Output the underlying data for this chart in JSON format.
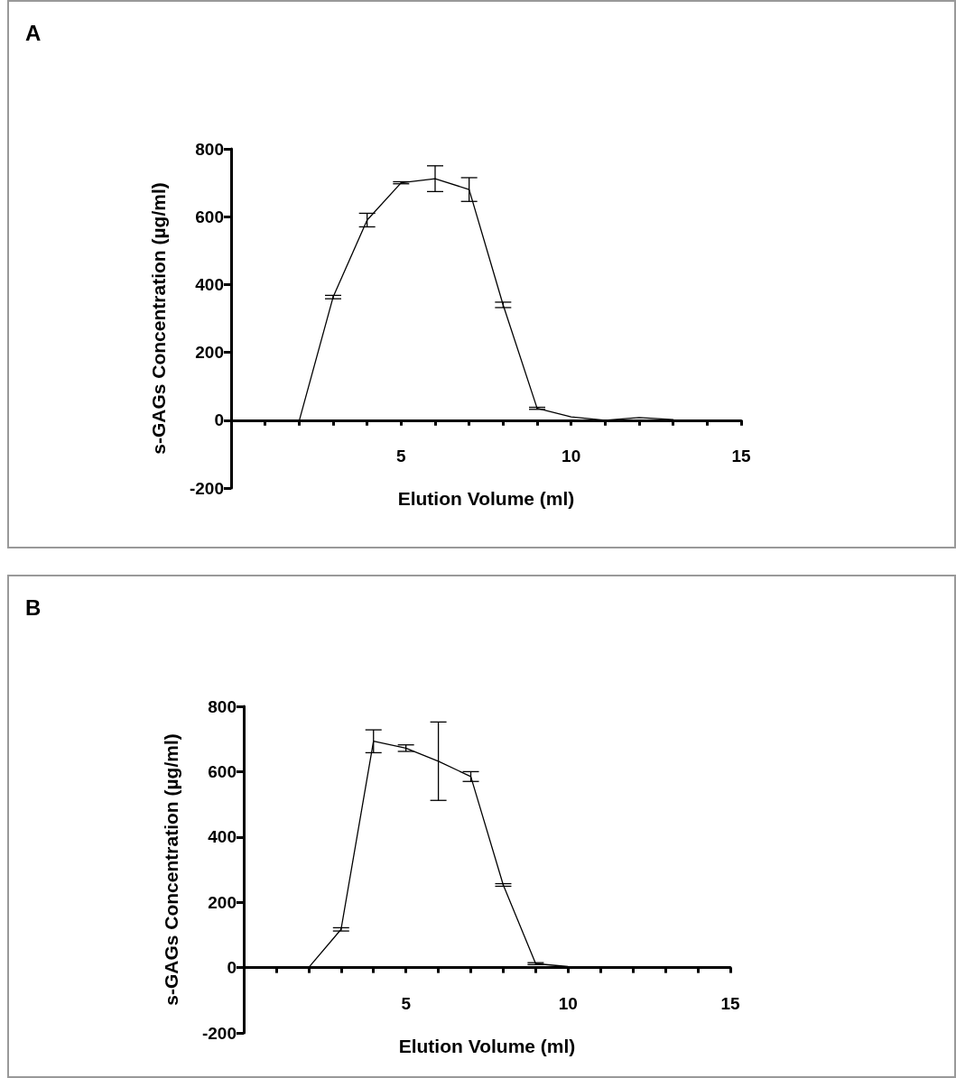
{
  "chart_data": [
    {
      "type": "line",
      "annotations": [
        "A"
      ],
      "xlabel": "Elution Volume (ml)",
      "ylabel": "s-GAGs Concentration (µg/ml)",
      "x": [
        1,
        2,
        3,
        4,
        5,
        6,
        7,
        8,
        9,
        10,
        11,
        12,
        13
      ],
      "series": [
        {
          "color": "#000000",
          "values": [
            -2,
            -3,
            363,
            590,
            700,
            712,
            680,
            340,
            35,
            10,
            0,
            8,
            2
          ],
          "errors": [
            null,
            null,
            5,
            20,
            3,
            38,
            35,
            8,
            3,
            null,
            null,
            null,
            null
          ]
        }
      ],
      "xlim": [
        0,
        15
      ],
      "ylim": [
        -200,
        800
      ],
      "xticks": [
        {
          "value": 1,
          "label": null
        },
        {
          "value": 2,
          "label": null
        },
        {
          "value": 3,
          "label": null
        },
        {
          "value": 4,
          "label": null
        },
        5,
        {
          "value": 6,
          "label": null
        },
        {
          "value": 7,
          "label": null
        },
        {
          "value": 8,
          "label": null
        },
        {
          "value": 9,
          "label": null
        },
        10,
        {
          "value": 11,
          "label": null
        },
        {
          "value": 12,
          "label": null
        },
        {
          "value": 13,
          "label": null
        },
        {
          "value": 14,
          "label": null
        },
        15
      ],
      "yticks": [
        -200,
        0,
        200,
        400,
        600,
        800
      ],
      "grid": false,
      "marker": "none",
      "line_style": "solid"
    },
    {
      "type": "line",
      "annotations": [
        "B"
      ],
      "xlabel": "Elution Volume (ml)",
      "ylabel": "s-GAGs Concentration (µg/ml)",
      "x": [
        2,
        3,
        4,
        5,
        6,
        7,
        8,
        9,
        10,
        11
      ],
      "series": [
        {
          "color": "#000000",
          "values": [
            0,
            117,
            693,
            672,
            632,
            585,
            253,
            12,
            3,
            2
          ],
          "errors": [
            null,
            5,
            35,
            10,
            120,
            15,
            4,
            3,
            null,
            null
          ]
        }
      ],
      "xlim": [
        0,
        15
      ],
      "ylim": [
        -200,
        800
      ],
      "xticks": [
        {
          "value": 1,
          "label": null
        },
        {
          "value": 2,
          "label": null
        },
        {
          "value": 3,
          "label": null
        },
        {
          "value": 4,
          "label": null
        },
        5,
        {
          "value": 6,
          "label": null
        },
        {
          "value": 7,
          "label": null
        },
        {
          "value": 8,
          "label": null
        },
        {
          "value": 9,
          "label": null
        },
        10,
        {
          "value": 11,
          "label": null
        },
        {
          "value": 12,
          "label": null
        },
        {
          "value": 13,
          "label": null
        },
        {
          "value": 14,
          "label": null
        },
        15
      ],
      "yticks": [
        -200,
        0,
        200,
        400,
        600,
        800
      ],
      "grid": false,
      "marker": "none",
      "line_style": "solid"
    }
  ]
}
